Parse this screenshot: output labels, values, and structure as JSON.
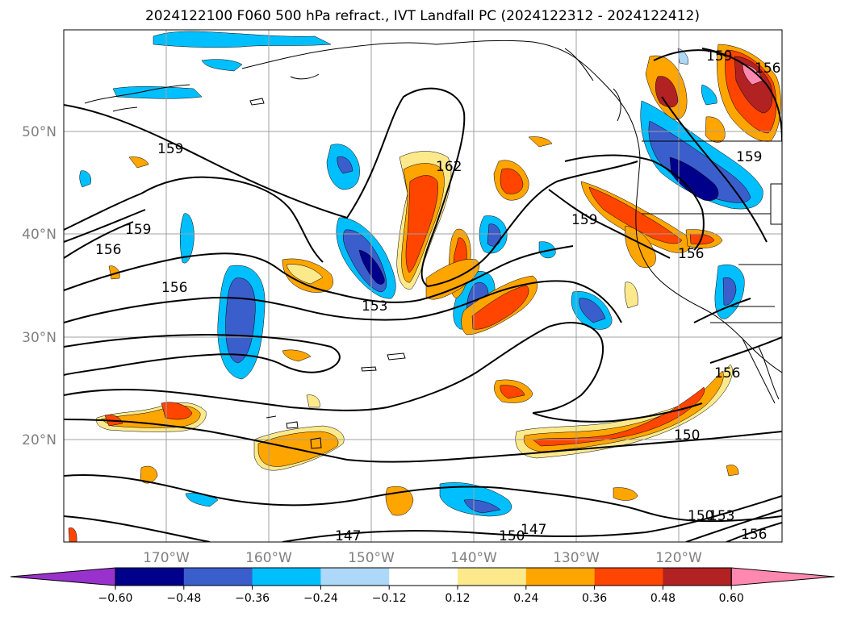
{
  "title": "2024122100 F060 500 hPa refract., IVT Landfall PC (2024122312 - 2024122412)",
  "lat_labels": [
    "50°N",
    "40°N",
    "30°N",
    "20°N"
  ],
  "lon_labels": [
    "170°W",
    "160°W",
    "150°W",
    "140°W",
    "130°W",
    "120°W"
  ],
  "contour_labels": [
    "159",
    "159",
    "159",
    "159",
    "159",
    "156",
    "156",
    "156",
    "156",
    "156",
    "156",
    "153",
    "153",
    "150",
    "150",
    "150",
    "147",
    "147",
    "162"
  ],
  "colorbar": {
    "ticks": [
      "−0.60",
      "−0.48",
      "−0.36",
      "−0.24",
      "−0.12",
      "0.12",
      "0.24",
      "0.36",
      "0.48",
      "0.60"
    ],
    "colors": [
      "#9932cc",
      "#00008b",
      "#3a5fcd",
      "#00bfff",
      "#add8f8",
      "#ffffff",
      "#fce98c",
      "#ffa500",
      "#ff4500",
      "#b22222",
      "#ff88b0"
    ]
  }
}
